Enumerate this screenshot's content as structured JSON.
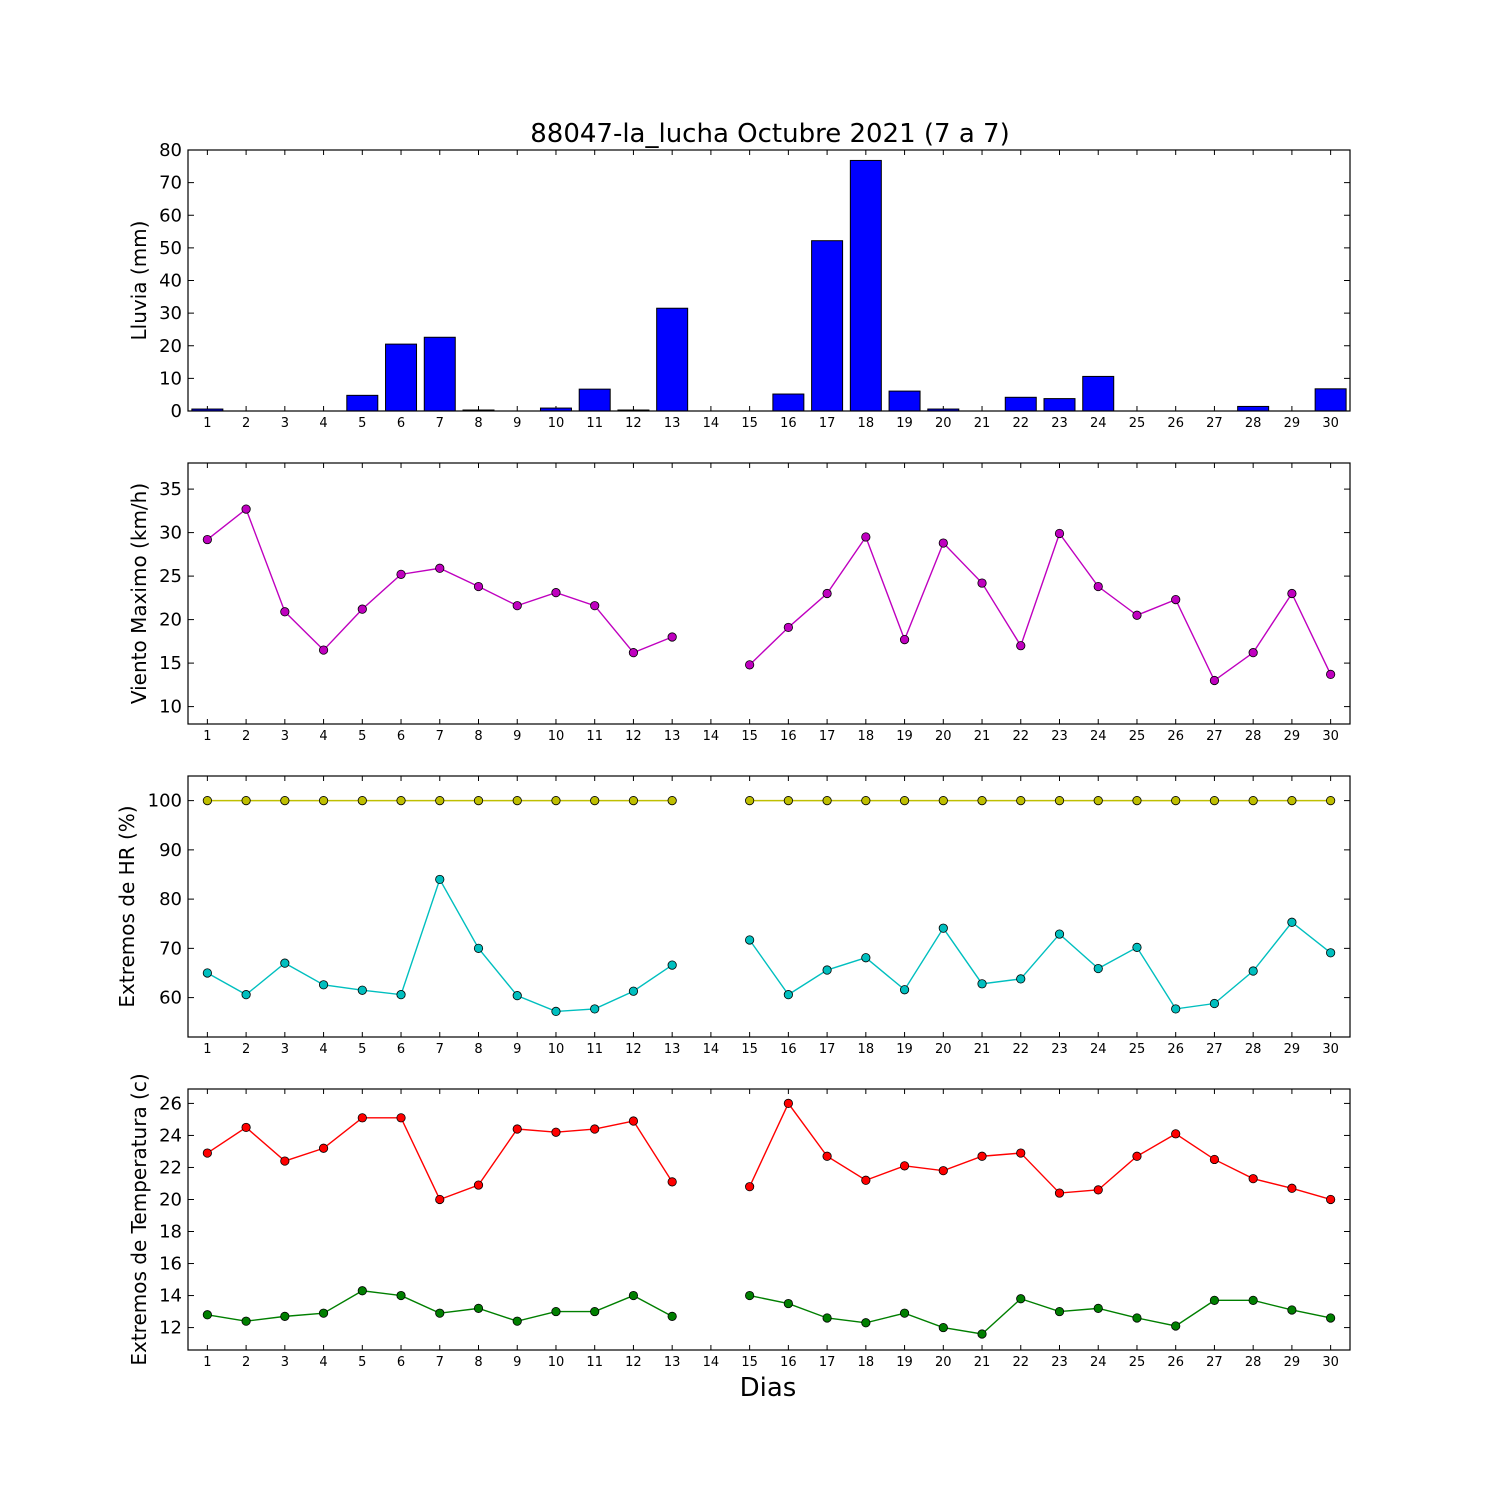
{
  "chart_data": {
    "title": "88047-la_lucha Octubre 2021  (7 a 7)",
    "xlabel": "Dias",
    "days": [
      1,
      2,
      3,
      4,
      5,
      6,
      7,
      8,
      9,
      10,
      11,
      12,
      13,
      14,
      15,
      16,
      17,
      18,
      19,
      20,
      21,
      22,
      23,
      24,
      25,
      26,
      27,
      28,
      29,
      30
    ],
    "panels": [
      {
        "type": "bar",
        "ylabel": "Lluvia (mm)",
        "ylim": [
          0,
          80
        ],
        "yticks": [
          0,
          10,
          20,
          30,
          40,
          50,
          60,
          70,
          80
        ],
        "series": [
          {
            "color": "#0000ff",
            "values": [
              0.6,
              0,
              0,
              0,
              4.8,
              20.5,
              22.6,
              0.3,
              0,
              0.9,
              6.7,
              0.3,
              31.5,
              0,
              0,
              5.2,
              52.2,
              76.8,
              6.1,
              0.6,
              0,
              4.2,
              3.8,
              10.6,
              0,
              0,
              0,
              1.4,
              0,
              6.8
            ]
          }
        ]
      },
      {
        "type": "line",
        "ylabel": "Viento Maximo (km/h)",
        "ylim": [
          8,
          38
        ],
        "yticks": [
          10,
          15,
          20,
          25,
          30,
          35
        ],
        "series": [
          {
            "color": "#bf00bf",
            "values": [
              29.2,
              32.7,
              20.9,
              16.5,
              21.2,
              25.2,
              25.9,
              23.8,
              21.6,
              23.1,
              21.6,
              16.2,
              18.0,
              null,
              14.8,
              19.1,
              23.0,
              29.5,
              17.7,
              28.8,
              24.2,
              17.0,
              29.9,
              23.8,
              20.5,
              22.3,
              13.0,
              16.2,
              23.0,
              13.7
            ]
          }
        ]
      },
      {
        "type": "line",
        "ylabel": "Extremos de HR (%)",
        "ylim": [
          52,
          105
        ],
        "yticks": [
          60,
          70,
          80,
          90,
          100
        ],
        "series": [
          {
            "color": "#bfbf00",
            "values": [
              100,
              100,
              100,
              100,
              100,
              100,
              100,
              100,
              100,
              100,
              100,
              100,
              100,
              null,
              100,
              100,
              100,
              100,
              100,
              100,
              100,
              100,
              100,
              100,
              100,
              100,
              100,
              100,
              100,
              100
            ]
          },
          {
            "color": "#00bfbf",
            "values": [
              65.0,
              60.6,
              67.0,
              62.6,
              61.5,
              60.6,
              84.0,
              70.0,
              60.4,
              57.2,
              57.7,
              61.3,
              66.6,
              null,
              71.7,
              60.6,
              65.6,
              68.1,
              61.6,
              74.1,
              62.8,
              63.8,
              72.9,
              65.9,
              70.2,
              57.7,
              58.8,
              65.4,
              75.3,
              69.1
            ]
          }
        ]
      },
      {
        "type": "line",
        "ylabel": "Extremos de Temperatura (c)",
        "ylim": [
          10.6,
          26.9
        ],
        "yticks": [
          12,
          14,
          16,
          18,
          20,
          22,
          24,
          26
        ],
        "series": [
          {
            "color": "#ff0000",
            "values": [
              22.9,
              24.5,
              22.4,
              23.2,
              25.1,
              25.1,
              20.0,
              20.9,
              24.4,
              24.2,
              24.4,
              24.9,
              21.1,
              null,
              20.8,
              26.0,
              22.7,
              21.2,
              22.1,
              21.8,
              22.7,
              22.9,
              20.4,
              20.6,
              22.7,
              24.1,
              22.5,
              21.3,
              20.7,
              20.0
            ]
          },
          {
            "color": "#007f00",
            "values": [
              12.8,
              12.4,
              12.7,
              12.9,
              14.3,
              14.0,
              12.9,
              13.2,
              12.4,
              13.0,
              13.0,
              14.0,
              12.7,
              null,
              14.0,
              13.5,
              12.6,
              12.3,
              12.9,
              12.0,
              11.6,
              13.8,
              13.0,
              13.2,
              12.6,
              12.1,
              13.7,
              13.7,
              13.1,
              12.6
            ]
          }
        ]
      }
    ]
  }
}
